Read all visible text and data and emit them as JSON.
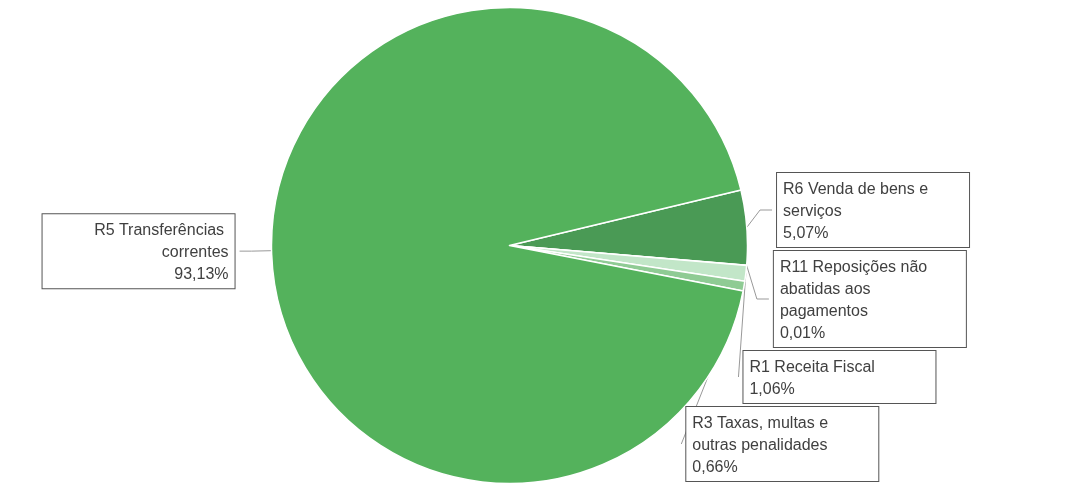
{
  "chart_data": {
    "type": "pie",
    "categories": [
      "R6 Venda de bens e serviços",
      "R11 Reposições não abatidas aos pagamentos",
      "R1 Receita Fiscal",
      "R3 Taxas, multas e outras penalidades",
      "R5 Transferências correntes"
    ],
    "values": [
      5.07,
      0.01,
      1.06,
      0.66,
      93.13
    ],
    "colors": [
      "#4a9a55",
      "#d8f0dc",
      "#c2e6c8",
      "#8fcb94",
      "#54b25c"
    ],
    "value_labels": [
      "5,07%",
      "0,01%",
      "1,06%",
      "0,66%",
      "93,13%"
    ],
    "legend": false
  }
}
